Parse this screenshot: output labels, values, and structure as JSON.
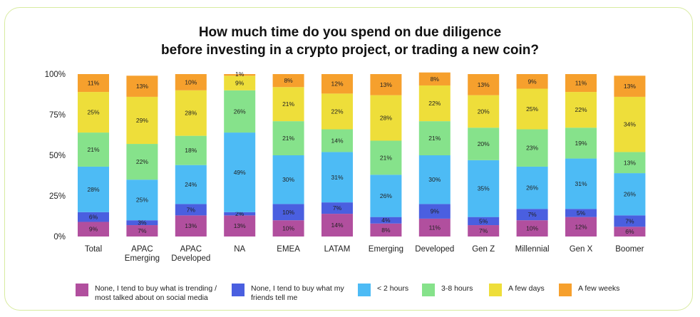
{
  "chart_data": {
    "type": "bar",
    "stacked": true,
    "title_lines": [
      "How much time do you spend on due diligence",
      "before investing in a crypto project, or trading a new coin?"
    ],
    "y_ticks": [
      "0%",
      "25%",
      "50%",
      "75%",
      "100%"
    ],
    "ylim": [
      0,
      100
    ],
    "categories": [
      [
        "Total"
      ],
      [
        "APAC",
        "Emerging"
      ],
      [
        "APAC",
        "Developed"
      ],
      [
        "NA"
      ],
      [
        "EMEA"
      ],
      [
        "LATAM"
      ],
      [
        "Emerging"
      ],
      [
        "Developed"
      ],
      [
        "Gen Z"
      ],
      [
        "Millennial"
      ],
      [
        "Gen X"
      ],
      [
        "Boomer"
      ]
    ],
    "series": [
      {
        "name": "None, I tend to buy what is trending / most talked about on social media",
        "color": "#b14f9e",
        "values": [
          9,
          7,
          13,
          13,
          10,
          14,
          8,
          11,
          7,
          10,
          12,
          6
        ]
      },
      {
        "name": "None, I tend to buy what my friends tell me",
        "color": "#4a5fe0",
        "values": [
          6,
          3,
          7,
          2,
          10,
          7,
          4,
          9,
          5,
          7,
          5,
          7
        ]
      },
      {
        "name": "< 2 hours",
        "color": "#4dbbf5",
        "values": [
          28,
          25,
          24,
          49,
          30,
          31,
          26,
          30,
          35,
          26,
          31,
          26
        ]
      },
      {
        "name": "3-8 hours",
        "color": "#86e28b",
        "values": [
          21,
          22,
          18,
          26,
          21,
          14,
          21,
          21,
          20,
          23,
          19,
          13
        ]
      },
      {
        "name": "A few days",
        "color": "#eede3a",
        "values": [
          25,
          29,
          28,
          9,
          21,
          22,
          28,
          22,
          20,
          25,
          22,
          34
        ]
      },
      {
        "name": "A few weeks",
        "color": "#f6a02d",
        "values": [
          11,
          13,
          10,
          1,
          8,
          12,
          13,
          8,
          13,
          9,
          11,
          13
        ]
      }
    ],
    "value_labels": [
      [
        "9%",
        "7%",
        "13%",
        "13%",
        "10%",
        "14%",
        "8%",
        "11%",
        "7%",
        "10%",
        "12%",
        "6%"
      ],
      [
        "6%",
        "3%",
        "7%",
        "2%",
        "10%",
        "7%",
        "4%",
        "9%",
        "5%",
        "7%",
        "5%",
        "7%"
      ],
      [
        "28%",
        "25%",
        "24%",
        "49%",
        "30%",
        "31%",
        "26%",
        "30%",
        "35%",
        "26%",
        "31%",
        "26%"
      ],
      [
        "21%",
        "22%",
        "18%",
        "26%",
        "21%",
        "14%",
        "21%",
        "21%",
        "20%",
        "23%",
        "19%",
        "13%"
      ],
      [
        "25%",
        "29%",
        "28%",
        "9%",
        "21%",
        "22%",
        "28%",
        "22%",
        "20%",
        "25%",
        "22%",
        "34%"
      ],
      [
        "11%",
        "13%",
        "10%",
        "1%",
        "8%",
        "12%",
        "13%",
        "8%",
        "13%",
        "9%",
        "11%",
        "13%"
      ]
    ],
    "legend": [
      {
        "label_lines": [
          "None, I tend to buy what is trending /",
          "most talked about on social media"
        ],
        "color": "#b14f9e"
      },
      {
        "label_lines": [
          "None, I tend to buy what my",
          "friends tell me"
        ],
        "color": "#4a5fe0"
      },
      {
        "label_lines": [
          "< 2 hours"
        ],
        "color": "#4dbbf5"
      },
      {
        "label_lines": [
          "3-8 hours"
        ],
        "color": "#86e28b"
      },
      {
        "label_lines": [
          "A few days"
        ],
        "color": "#eede3a"
      },
      {
        "label_lines": [
          "A few weeks"
        ],
        "color": "#f6a02d"
      }
    ],
    "legend_position": "bottom",
    "grid": false
  }
}
